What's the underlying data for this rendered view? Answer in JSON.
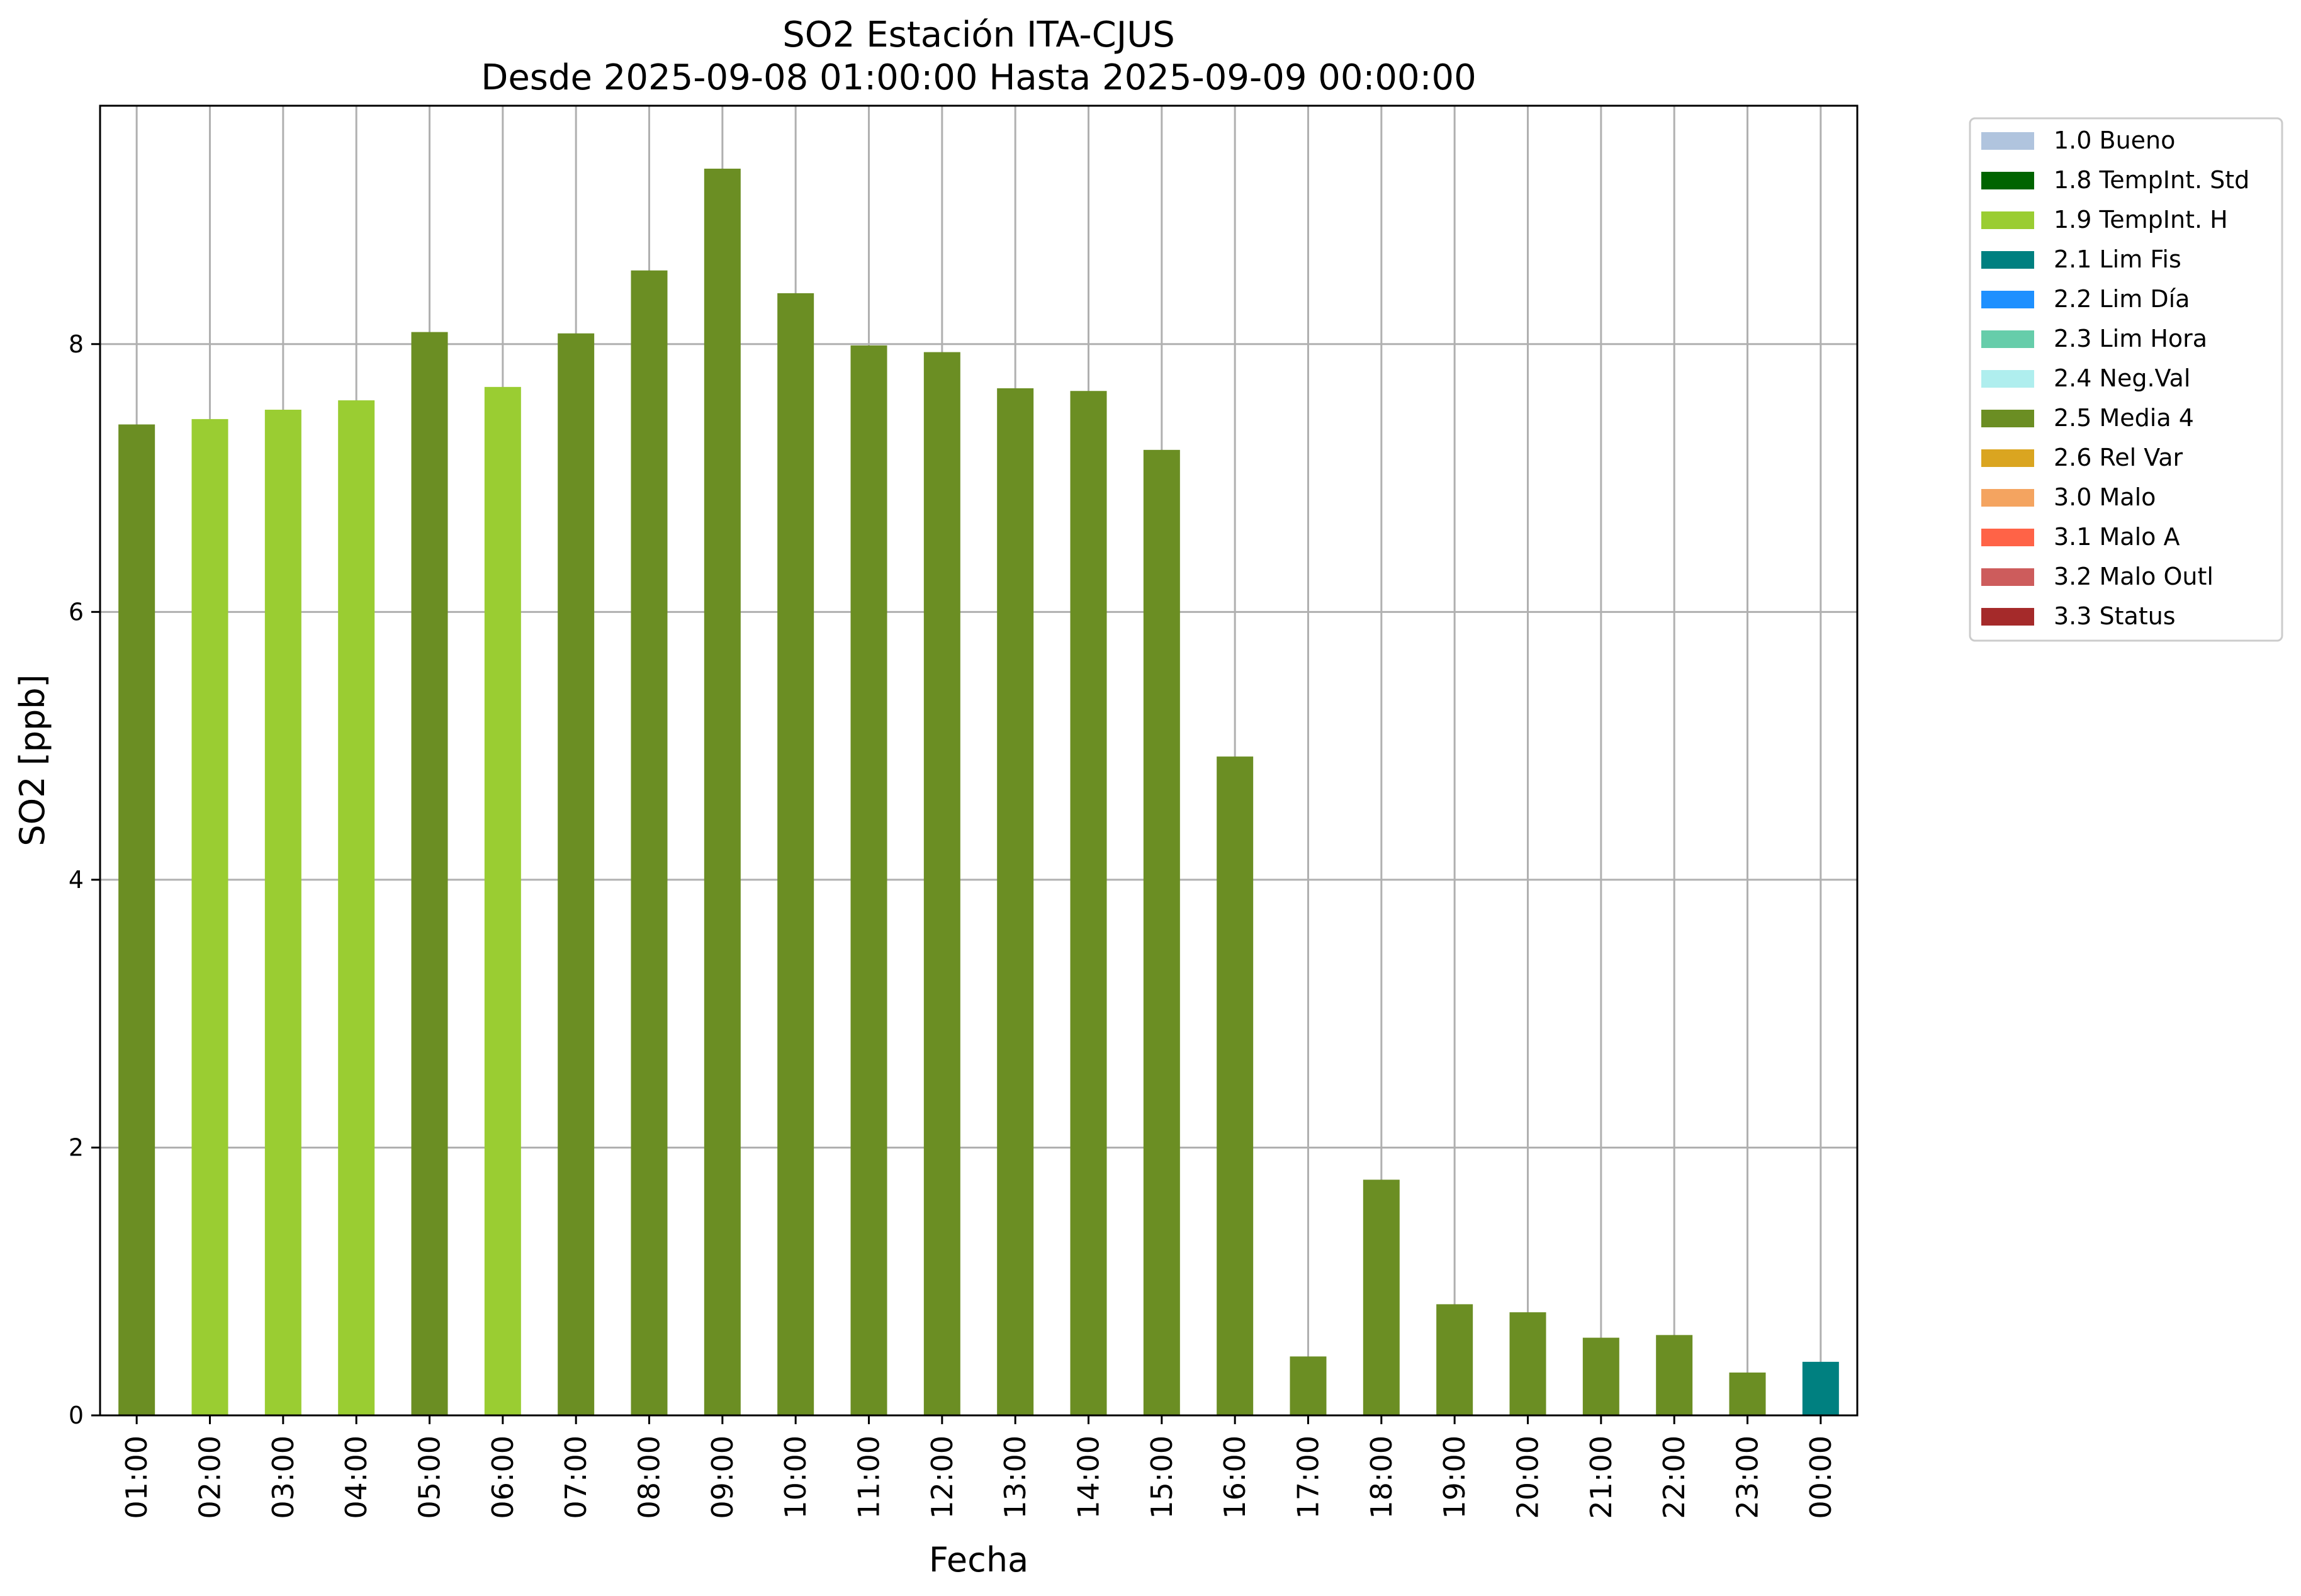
{
  "chart_data": {
    "type": "bar",
    "title_line1": "SO2 Estación ITA-CJUS",
    "title_line2": "Desde 2025-09-08 01:00:00 Hasta 2025-09-09 00:00:00",
    "xlabel": "Fecha",
    "ylabel": "SO2 [ppb]",
    "ylim": [
      0,
      9.78
    ],
    "yticks": [
      0,
      2,
      4,
      6,
      8
    ],
    "grid": true,
    "legend_position": "outside-right-top",
    "categories": [
      "01:00",
      "02:00",
      "03:00",
      "04:00",
      "05:00",
      "06:00",
      "07:00",
      "08:00",
      "09:00",
      "10:00",
      "11:00",
      "12:00",
      "13:00",
      "14:00",
      "15:00",
      "16:00",
      "17:00",
      "18:00",
      "19:00",
      "20:00",
      "21:00",
      "22:00",
      "23:00",
      "00:00"
    ],
    "values": [
      7.4,
      7.44,
      7.51,
      7.58,
      8.09,
      7.68,
      8.08,
      8.55,
      9.31,
      8.38,
      7.99,
      7.94,
      7.67,
      7.65,
      7.21,
      4.92,
      0.44,
      1.76,
      0.83,
      0.77,
      0.58,
      0.6,
      0.32,
      0.4
    ],
    "flags": [
      "2.5 Media 4",
      "1.9 TempInt. H",
      "1.9 TempInt. H",
      "1.9 TempInt. H",
      "2.5 Media 4",
      "1.9 TempInt. H",
      "2.5 Media 4",
      "2.5 Media 4",
      "2.5 Media 4",
      "2.5 Media 4",
      "2.5 Media 4",
      "2.5 Media 4",
      "2.5 Media 4",
      "2.5 Media 4",
      "2.5 Media 4",
      "2.5 Media 4",
      "2.5 Media 4",
      "2.5 Media 4",
      "2.5 Media 4",
      "2.5 Media 4",
      "2.5 Media 4",
      "2.5 Media 4",
      "2.5 Media 4",
      "2.1 Lim Fis"
    ],
    "legend": [
      {
        "label": "1.0 Bueno",
        "color": "#b0c4de"
      },
      {
        "label": "1.8 TempInt. Std",
        "color": "#006400"
      },
      {
        "label": "1.9 TempInt. H",
        "color": "#9acd32"
      },
      {
        "label": "2.1 Lim Fis",
        "color": "#008080"
      },
      {
        "label": "2.2 Lim Día",
        "color": "#1e90ff"
      },
      {
        "label": "2.3 Lim Hora",
        "color": "#66cdaa"
      },
      {
        "label": "2.4 Neg.Val",
        "color": "#afeeee"
      },
      {
        "label": "2.5 Media 4",
        "color": "#6b8e23"
      },
      {
        "label": "2.6 Rel Var",
        "color": "#daa520"
      },
      {
        "label": "3.0 Malo",
        "color": "#f4a460"
      },
      {
        "label": "3.1 Malo A",
        "color": "#ff6347"
      },
      {
        "label": "3.2 Malo Outl",
        "color": "#cd5c5c"
      },
      {
        "label": "3.3 Status",
        "color": "#a52a2a"
      }
    ]
  }
}
